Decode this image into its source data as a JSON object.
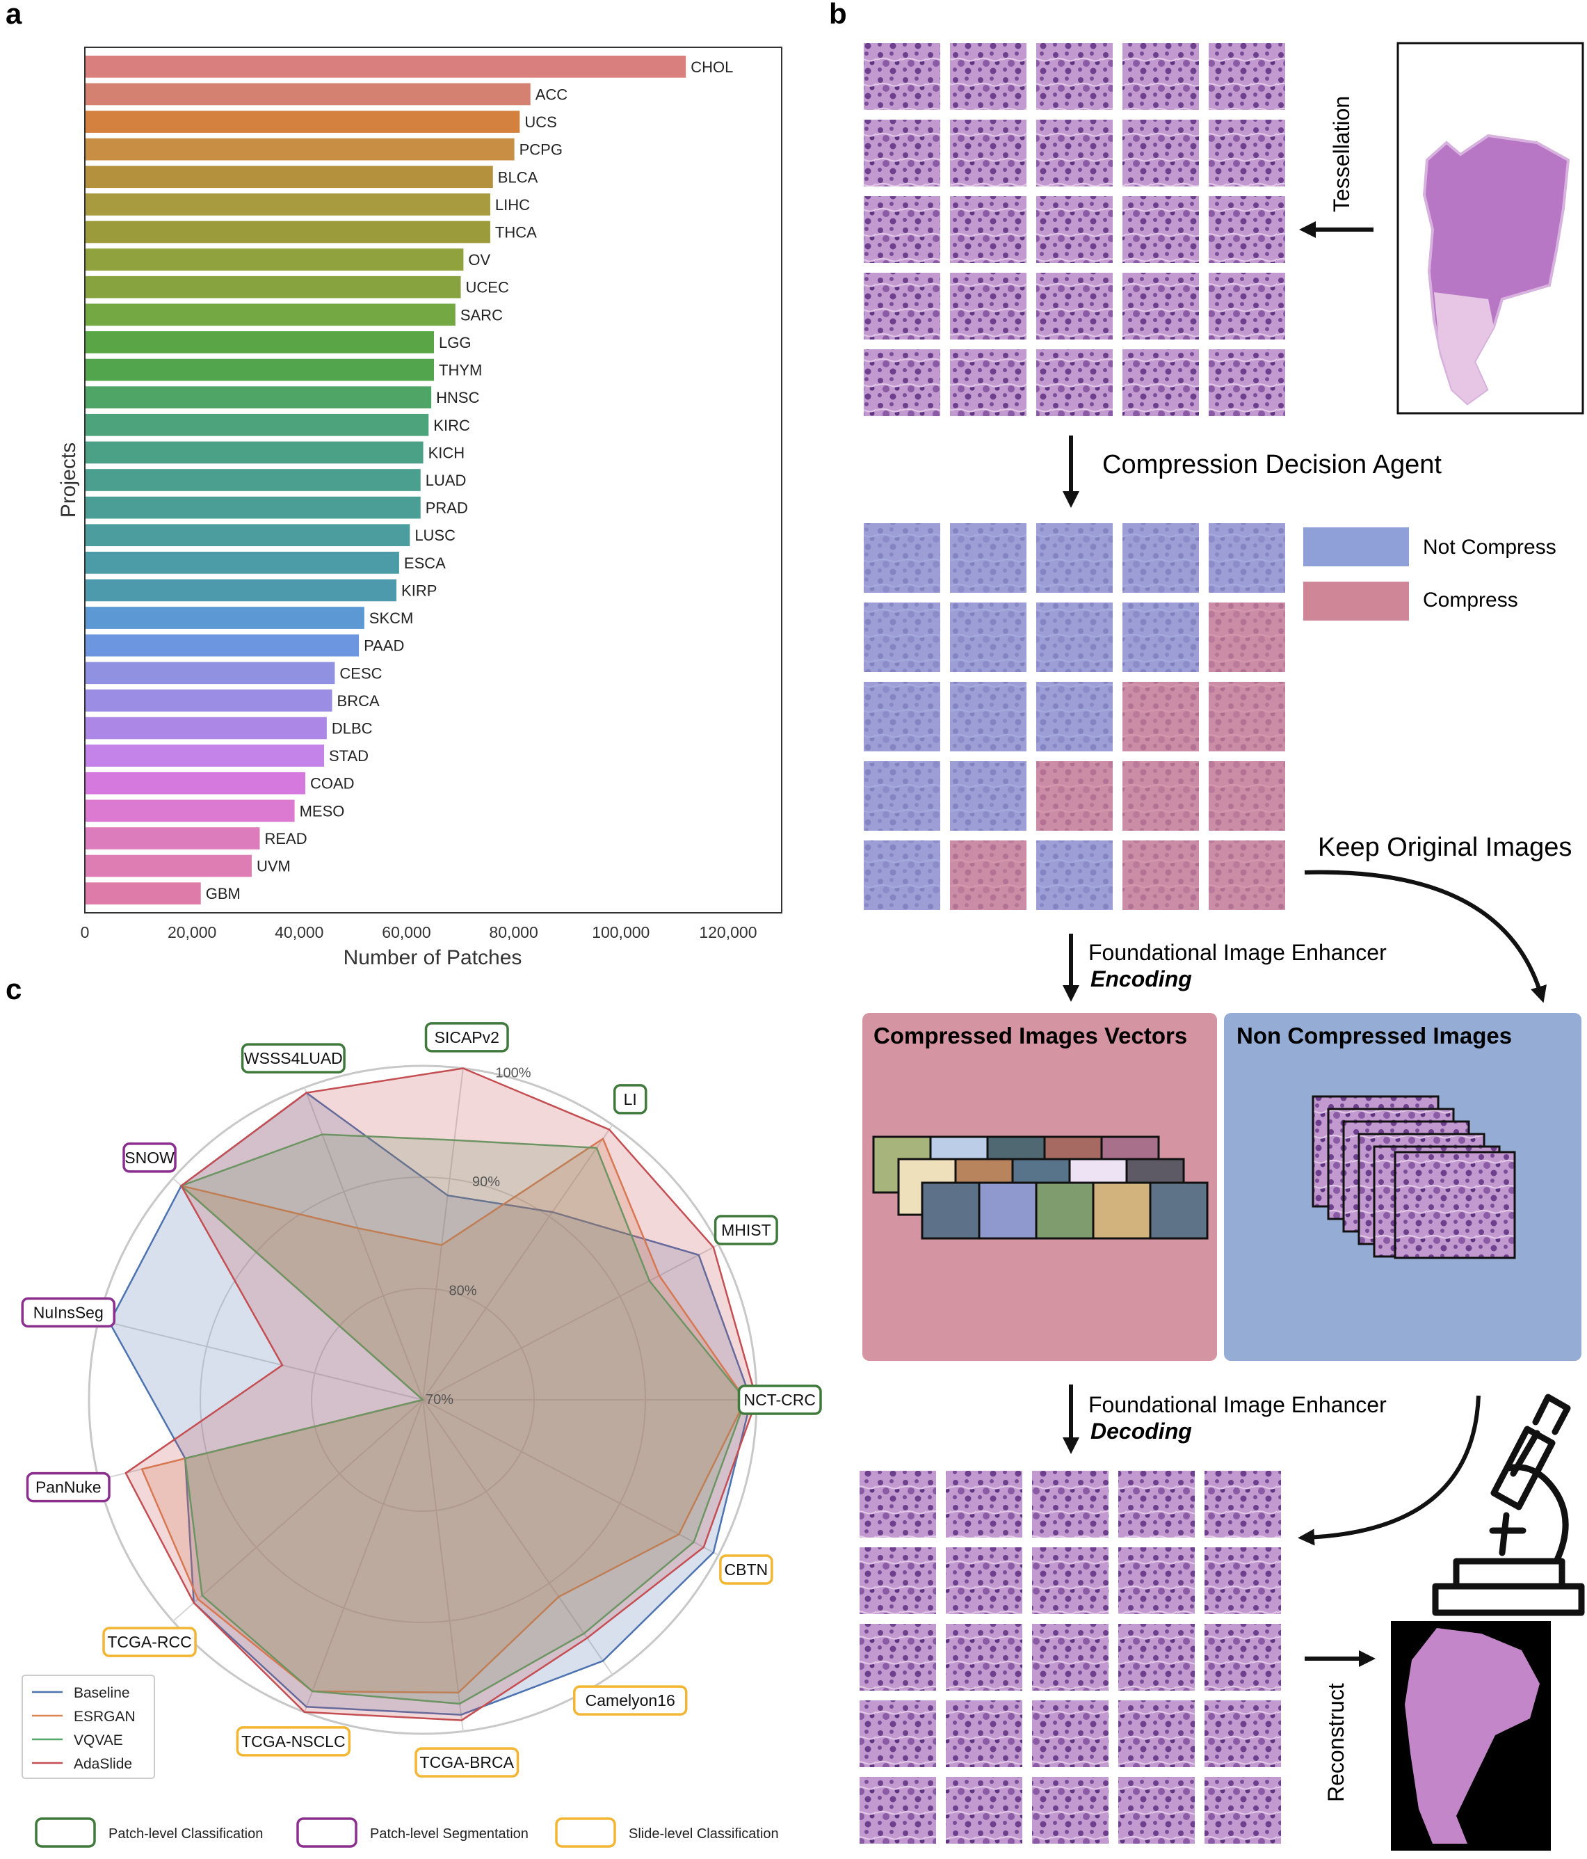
{
  "panels": {
    "a": "a",
    "b": "b",
    "c": "c"
  },
  "chart_data": [
    {
      "type": "bar",
      "orientation": "horizontal",
      "categories": [
        "CHOL",
        "ACC",
        "UCS",
        "PCPG",
        "BLCA",
        "LIHC",
        "THCA",
        "OV",
        "UCEC",
        "SARC",
        "LGG",
        "THYM",
        "HNSC",
        "KIRC",
        "KICH",
        "LUAD",
        "PRAD",
        "LUSC",
        "ESCA",
        "KIRP",
        "SKCM",
        "PAAD",
        "CESC",
        "BRCA",
        "DLBC",
        "STAD",
        "COAD",
        "MESO",
        "READ",
        "UVM",
        "GBM"
      ],
      "values": [
        112000,
        83000,
        81000,
        80000,
        76000,
        75500,
        75500,
        70500,
        70000,
        69000,
        65000,
        65000,
        64500,
        64000,
        63000,
        62500,
        62500,
        60500,
        58500,
        58000,
        52000,
        51000,
        46500,
        46000,
        45000,
        44500,
        41000,
        39000,
        32500,
        31000,
        21500
      ],
      "colors": [
        "#d9807e",
        "#d58171",
        "#d4813f",
        "#c78e44",
        "#b4923d",
        "#a89a3e",
        "#9b9b3b",
        "#8fa23e",
        "#86a33f",
        "#74a843",
        "#5aa646",
        "#52a54c",
        "#4ea565",
        "#4ca37c",
        "#4ba186",
        "#4a9f8f",
        "#4a9e95",
        "#4b9d9e",
        "#4c9ca7",
        "#4e9aad",
        "#5b98d4",
        "#6d96e0",
        "#9191e2",
        "#9b8de4",
        "#ad87e6",
        "#c383e8",
        "#d579de",
        "#dc7ad1",
        "#dd7cbd",
        "#de7db4",
        "#df7ba9"
      ],
      "xlabel": "Number of Patches",
      "ylabel": "Projects",
      "xlim": [
        0,
        130000
      ],
      "xticks": [
        0,
        20000,
        40000,
        60000,
        80000,
        100000,
        120000
      ],
      "xtick_labels": [
        "0",
        "20,000",
        "40,000",
        "60,000",
        "80,000",
        "100,000",
        "120,000"
      ]
    },
    {
      "type": "radar",
      "axes": [
        "NCT-CRC",
        "MHIST",
        "LI",
        "SICAPv2",
        "WSSS4LUAD",
        "SNOW",
        "NuInsSeg",
        "PanNuke",
        "TCGA-RCC",
        "TCGA-NSCLC",
        "TCGA-BRCA",
        "Camelyon16",
        "CBTN"
      ],
      "axis_groups": [
        "patch-cls",
        "patch-cls",
        "patch-cls",
        "patch-cls",
        "patch-cls",
        "patch-seg",
        "patch-seg",
        "patch-seg",
        "slide-cls",
        "slide-cls",
        "slide-cls",
        "slide-cls",
        "slide-cls"
      ],
      "rlim": [
        70,
        100
      ],
      "rticks": [
        70,
        80,
        90,
        100
      ],
      "rtick_labels": [
        "70%",
        "80%",
        "90%",
        "100%"
      ],
      "series": [
        {
          "name": "Baseline",
          "color": "#4c72b0",
          "values": [
            99.5,
            98,
            90.5,
            88.5,
            99.5,
            99,
            99,
            92,
            97.5,
            99.5,
            98.5,
            98.5,
            99.5
          ]
        },
        {
          "name": "ESRGAN",
          "color": "#dd8452",
          "values": [
            99,
            94,
            98.5,
            84,
            86.5,
            99,
            70,
            96,
            97,
            98,
            96.5,
            91.5,
            96
          ]
        },
        {
          "name": "VQVAE",
          "color": "#55a868",
          "values": [
            99,
            93,
            97.5,
            93.5,
            95.5,
            99,
            70,
            92,
            96.5,
            98,
            97.5,
            95.5,
            97.5
          ]
        },
        {
          "name": "AdaSlide",
          "color": "#c44e52",
          "values": [
            100,
            99.5,
            99.5,
            100,
            99.5,
            99,
            83,
            97.5,
            97.5,
            100,
            99,
            96,
            98.5
          ]
        }
      ],
      "group_legend": [
        {
          "label": "Patch-level Classification",
          "color": "#3f7a3c"
        },
        {
          "label": "Patch-level Segmentation",
          "color": "#8a2f8e"
        },
        {
          "label": "Slide-level Classification",
          "color": "#f2b632"
        }
      ]
    }
  ],
  "diagram": {
    "tessellation": "Tessellation",
    "agent": "Compression Decision Agent",
    "legend_not_compress": "Not Compress",
    "legend_compress": "Compress",
    "keep_original": "Keep Original Images",
    "enhancer_label": "Foundational Image Enhancer",
    "encoding": "Encoding",
    "decoding": "Decoding",
    "compressed_box_title": "Compressed Images Vectors",
    "noncompressed_box_title": "Non Compressed Images",
    "reconstruct": "Reconstruct",
    "compress_mask": [
      [
        0,
        0,
        0,
        0,
        0
      ],
      [
        0,
        0,
        0,
        0,
        1
      ],
      [
        0,
        0,
        0,
        1,
        1
      ],
      [
        0,
        0,
        1,
        1,
        1
      ],
      [
        0,
        1,
        0,
        1,
        1
      ]
    ],
    "colors": {
      "tile": "#b27fc5",
      "not_compress": "#8fa0d8",
      "compress": "#cf8696",
      "compressed_box": "#d494a1",
      "noncompressed_box": "#95acd5"
    },
    "vector_rows": [
      [
        "#a7b47c",
        "#bccde8",
        "#4f6872",
        "#a66a62",
        "#a8708a"
      ],
      [
        "#efe0bc",
        "#b7845e",
        "#58748b",
        "#ede3f5",
        "#5d5a65"
      ],
      [
        "#5d7289",
        "#8f99ce",
        "#7f9c6e",
        "#d2b27d",
        "#5f7388"
      ]
    ]
  }
}
